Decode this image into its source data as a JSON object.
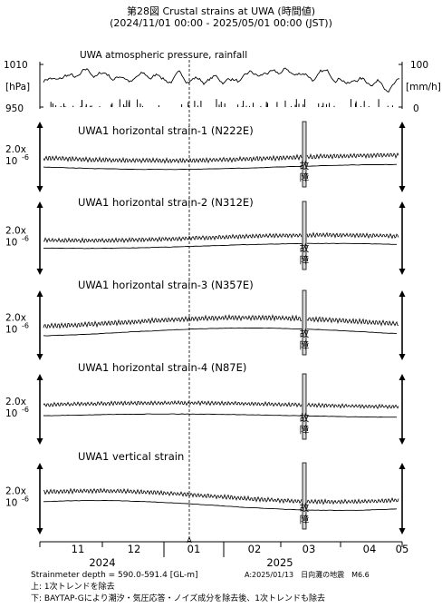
{
  "chart_data": {
    "type": "line",
    "title": "第28図 Crustal strains at UWA (時間値)",
    "subtitle": "(2024/11/01 00:00 - 2025/05/01 00:00 (JST))",
    "x_month_ticks": [
      "11",
      "12",
      "01",
      "02",
      "03",
      "04",
      "05"
    ],
    "x_year_labels": [
      "2024",
      "2025"
    ],
    "event_marker": {
      "label": "A",
      "date": "2025/01/13"
    },
    "outage": {
      "label_chars": [
        "故",
        "障"
      ],
      "approx_date": "2025/03/25"
    },
    "scale_label": {
      "main": "2.0x",
      "sub": "10",
      "exp": "-6"
    },
    "atmos_panel": {
      "title": "UWA atmospheric pressure, rainfall",
      "left_axis": {
        "label": "[hPa]",
        "ticks": [
          "1010",
          "950"
        ]
      },
      "right_axis": {
        "label": "[mm/h]",
        "ticks": [
          "100",
          "0"
        ]
      }
    },
    "panels": [
      {
        "name": "UWA1 horizontal strain-1 (N222E)"
      },
      {
        "name": "UWA1 horizontal strain-2 (N312E)"
      },
      {
        "name": "UWA1 horizontal strain-3 (N357E)"
      },
      {
        "name": "UWA1 horizontal strain-4 (N87E)"
      },
      {
        "name": "UWA1 vertical strain"
      }
    ]
  },
  "notes": {
    "depth": "Strainmeter depth = 590.0-591.4 [GL-m]",
    "event": "A:2025/01/13　日向灘の地震　M6.6",
    "upper": "上: 1次トレンドを除去",
    "lower": "下: BAYTAP-Gにより潮汐・気圧応答・ノイズ成分を除去後、1次トレンドも除去"
  }
}
